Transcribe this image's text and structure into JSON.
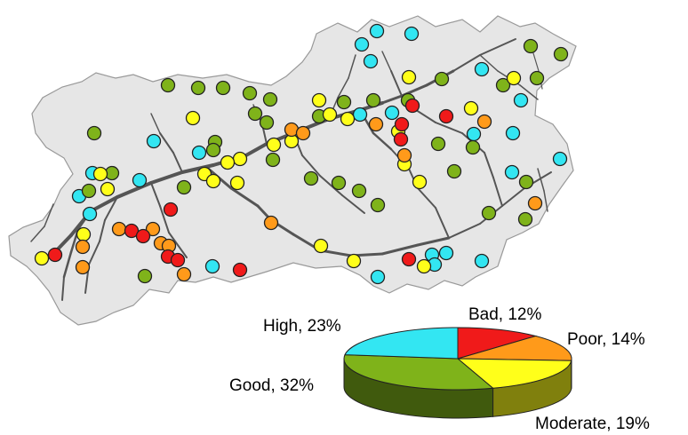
{
  "colors": {
    "high": "#33e6f2",
    "good": "#7fb31a",
    "moderate": "#ffff1a",
    "poor": "#ff9a1a",
    "bad": "#f01a1a",
    "region_fill": "#e6e6e6",
    "river": "#555555"
  },
  "legend": {
    "high": "High, 23%",
    "good": "Good, 32%",
    "moderate": "Moderate, 19%",
    "poor": "Poor, 14%",
    "bad": "Bad, 12%"
  },
  "chart_data": {
    "type": "pie",
    "slices": [
      {
        "label": "Bad",
        "value": 12,
        "color": "#f01a1a"
      },
      {
        "label": "Poor",
        "value": 14,
        "color": "#ff9a1a"
      },
      {
        "label": "Moderate",
        "value": 19,
        "color": "#ffff1a"
      },
      {
        "label": "Good",
        "value": 32,
        "color": "#7fb31a"
      },
      {
        "label": "High",
        "value": 23,
        "color": "#33e6f2"
      }
    ]
  }
}
